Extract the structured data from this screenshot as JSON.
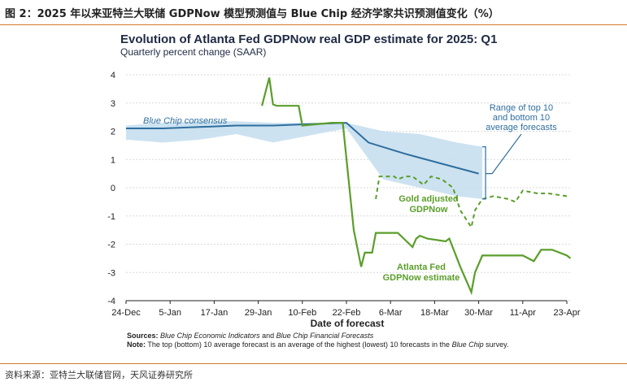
{
  "page": {
    "caption": "图 2：2025 年以来亚特兰大联储 GDPNow 模型预测值与 Blue Chip 经济学家共识预测值变化（%）",
    "source": "资料来源：亚特兰大联储官网，天风证券研究所",
    "colors": {
      "accent_rule": "#d27a2a",
      "gdpnow": "#5a9e2a",
      "bluechip": "#2f6e9e",
      "band": "#c7dff0"
    }
  },
  "chart_data": {
    "type": "line",
    "title": "Evolution of Atlanta Fed GDPNow real GDP estimate for 2025: Q1",
    "subtitle": "Quarterly percent change (SAAR)",
    "xlabel": "Date of forecast",
    "ylabel": "",
    "ylim": [
      -4,
      4
    ],
    "yticks": [
      4,
      3,
      2,
      1,
      0,
      -1,
      -2,
      -3,
      -4
    ],
    "x_unit": "days since 24-Dec-2024",
    "xlim": [
      0,
      120
    ],
    "xticks": [
      {
        "label": "24-Dec",
        "x": 0
      },
      {
        "label": "5-Jan",
        "x": 12
      },
      {
        "label": "17-Jan",
        "x": 24
      },
      {
        "label": "29-Jan",
        "x": 36
      },
      {
        "label": "10-Feb",
        "x": 48
      },
      {
        "label": "22-Feb",
        "x": 60
      },
      {
        "label": "6-Mar",
        "x": 72
      },
      {
        "label": "18-Mar",
        "x": 84
      },
      {
        "label": "30-Mar",
        "x": 96
      },
      {
        "label": "11-Apr",
        "x": 108
      },
      {
        "label": "23-Apr",
        "x": 120
      }
    ],
    "series": [
      {
        "name": "Blue Chip consensus",
        "label_text": "Blue Chip consensus",
        "style": "solid",
        "points": [
          [
            0,
            2.1
          ],
          [
            10,
            2.1
          ],
          [
            20,
            2.15
          ],
          [
            30,
            2.2
          ],
          [
            40,
            2.2
          ],
          [
            50,
            2.25
          ],
          [
            60,
            2.3
          ],
          [
            66,
            1.6
          ],
          [
            76,
            1.2
          ],
          [
            86,
            0.85
          ],
          [
            96,
            0.5
          ]
        ]
      },
      {
        "name": "Range of top 10 and bottom 10 average forecasts",
        "label_text": "Range of top 10\nand bottom 10\naverage forecasts",
        "style": "band",
        "upper": [
          [
            0,
            2.2
          ],
          [
            10,
            2.3
          ],
          [
            20,
            2.35
          ],
          [
            30,
            2.35
          ],
          [
            40,
            2.3
          ],
          [
            50,
            2.3
          ],
          [
            60,
            2.3
          ],
          [
            70,
            2.0
          ],
          [
            80,
            1.9
          ],
          [
            90,
            1.6
          ],
          [
            97,
            1.45
          ]
        ],
        "lower": [
          [
            97,
            -0.4
          ],
          [
            90,
            -0.3
          ],
          [
            80,
            0.0
          ],
          [
            70,
            0.3
          ],
          [
            60,
            2.1
          ],
          [
            50,
            1.85
          ],
          [
            40,
            1.6
          ],
          [
            30,
            1.9
          ],
          [
            20,
            1.7
          ],
          [
            10,
            1.6
          ],
          [
            0,
            1.7
          ]
        ]
      },
      {
        "name": "Atlanta Fed GDPNow estimate",
        "label_text": "Atlanta Fed\nGDPNow estimate",
        "style": "solid",
        "points": [
          [
            37,
            2.9
          ],
          [
            39,
            3.9
          ],
          [
            40,
            2.95
          ],
          [
            41,
            2.9
          ],
          [
            47,
            2.9
          ],
          [
            48,
            2.2
          ],
          [
            56,
            2.3
          ],
          [
            59,
            2.3
          ],
          [
            62,
            -1.5
          ],
          [
            64,
            -2.8
          ],
          [
            65,
            -2.3
          ],
          [
            66,
            -2.3
          ],
          [
            67,
            -2.3
          ],
          [
            68,
            -1.6
          ],
          [
            74,
            -1.6
          ],
          [
            78,
            -2.1
          ],
          [
            79,
            -1.8
          ],
          [
            80,
            -1.7
          ],
          [
            82,
            -1.8
          ],
          [
            87,
            -1.9
          ],
          [
            88,
            -1.8
          ],
          [
            91,
            -2.8
          ],
          [
            94,
            -3.7
          ],
          [
            95,
            -3.0
          ],
          [
            97,
            -2.4
          ],
          [
            108,
            -2.4
          ],
          [
            111,
            -2.6
          ],
          [
            113,
            -2.2
          ],
          [
            116,
            -2.2
          ],
          [
            120,
            -2.4
          ],
          [
            121,
            -2.5
          ]
        ]
      },
      {
        "name": "Gold adjusted GDPNow",
        "label_text": "Gold adjusted\nGDPNow",
        "style": "dashed",
        "points": [
          [
            68,
            -0.4
          ],
          [
            69,
            0.4
          ],
          [
            73,
            0.4
          ],
          [
            74,
            0.3
          ],
          [
            76,
            0.4
          ],
          [
            78,
            0.4
          ],
          [
            81,
            0.1
          ],
          [
            83,
            0.4
          ],
          [
            86,
            0.3
          ],
          [
            89,
            0.0
          ],
          [
            91,
            -0.8
          ],
          [
            94,
            -1.4
          ],
          [
            95,
            -0.8
          ],
          [
            97,
            -0.4
          ],
          [
            100,
            -0.3
          ],
          [
            104,
            -0.4
          ],
          [
            106,
            -0.5
          ],
          [
            108,
            -0.1
          ],
          [
            112,
            -0.2
          ],
          [
            115,
            -0.2
          ],
          [
            120,
            -0.3
          ]
        ]
      }
    ],
    "notes": {
      "sources_label": "Sources:",
      "sources_1": "Blue Chip Economic Indicators",
      "sources_and": "and",
      "sources_2": "Blue Chip Financial Forecasts",
      "note_label": "Note:",
      "note_text": "The top (bottom) 10 average forecast is an average of the highest (lowest) 10 forecasts in the",
      "note_italic": "Blue Chip",
      "note_end": "survey."
    }
  }
}
